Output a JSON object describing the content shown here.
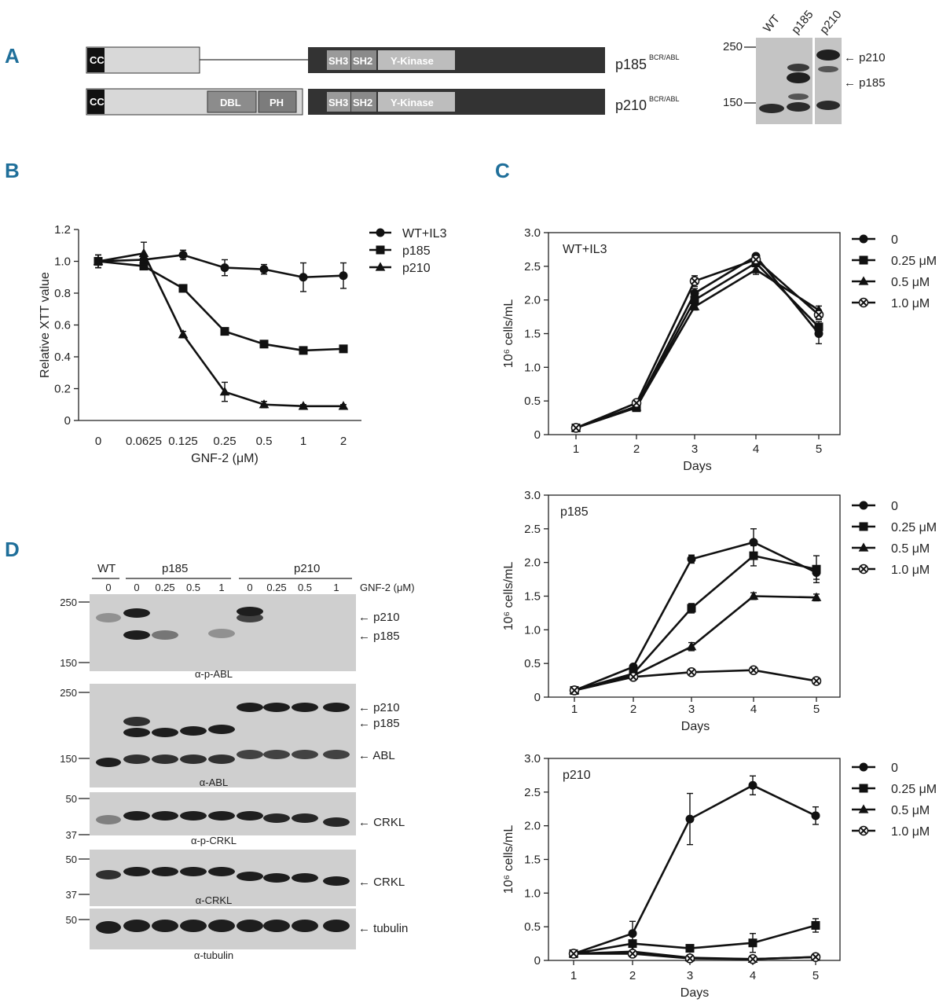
{
  "panel_labels": {
    "a": "A",
    "b": "B",
    "c": "C",
    "d": "D"
  },
  "panel_a": {
    "constructs": [
      {
        "name": "p185",
        "superscript": "BCR/ABL",
        "domains": [
          "CC",
          "SH3",
          "SH2",
          "Y-Kinase"
        ]
      },
      {
        "name": "p210",
        "superscript": "BCR/ABL",
        "domains": [
          "CC",
          "DBL",
          "PH",
          "SH3",
          "SH2",
          "Y-Kinase"
        ]
      }
    ],
    "blot": {
      "lanes": [
        "WT",
        "p185",
        "p210"
      ],
      "markers": [
        "250",
        "150"
      ],
      "arrows": [
        "p210",
        "p185"
      ]
    }
  },
  "chart_data": [
    {
      "id": "B",
      "type": "line",
      "title": "",
      "xlabel": "GNF-2 (μM)",
      "ylabel": "Relative XTT value",
      "categories": [
        "0",
        "0.0625",
        "0.125",
        "0.25",
        "0.5",
        "1",
        "2"
      ],
      "yticks": [
        "0",
        "0.2",
        "0.4",
        "0.6",
        "0.8",
        "1.0",
        "1.2"
      ],
      "ylim": [
        0,
        1.2
      ],
      "series": [
        {
          "name": "WT+IL3",
          "marker": "circle",
          "values": [
            1.0,
            1.01,
            1.04,
            0.96,
            0.95,
            0.9,
            0.91
          ],
          "errors": [
            0.04,
            0.03,
            0.03,
            0.05,
            0.03,
            0.09,
            0.08
          ]
        },
        {
          "name": "p185",
          "marker": "square",
          "values": [
            1.0,
            0.97,
            0.83,
            0.56,
            0.48,
            0.44,
            0.45
          ],
          "errors": [
            0.04,
            0.02,
            0.02,
            0.02,
            0.02,
            0.02,
            0.02
          ]
        },
        {
          "name": "p210",
          "marker": "triangle",
          "values": [
            1.0,
            1.05,
            0.54,
            0.18,
            0.1,
            0.09,
            0.09
          ],
          "errors": [
            0.04,
            0.07,
            0.02,
            0.06,
            0.02,
            0.01,
            0.01
          ]
        }
      ]
    },
    {
      "id": "C1",
      "type": "line",
      "title": "WT+IL3",
      "xlabel": "Days",
      "ylabel": "10⁶ cells/mL",
      "categories": [
        "1",
        "2",
        "3",
        "4",
        "5"
      ],
      "yticks": [
        "0",
        "0.5",
        "1.0",
        "1.5",
        "2.0",
        "2.5",
        "3.0"
      ],
      "ylim": [
        0,
        3.0
      ],
      "series": [
        {
          "name": "0",
          "marker": "circle",
          "values": [
            0.1,
            0.42,
            2.1,
            2.65,
            1.5
          ],
          "errors": [
            0.02,
            0.03,
            0.07,
            0.03,
            0.15
          ]
        },
        {
          "name": "0.25 μM",
          "marker": "square",
          "values": [
            0.1,
            0.4,
            2.0,
            2.55,
            1.6
          ],
          "errors": [
            0.02,
            0.03,
            0.06,
            0.05,
            0.08
          ]
        },
        {
          "name": "0.5 μM",
          "marker": "triangle",
          "values": [
            0.1,
            0.41,
            1.9,
            2.45,
            1.85
          ],
          "errors": [
            0.02,
            0.03,
            0.05,
            0.07,
            0.06
          ]
        },
        {
          "name": "1.0 μM",
          "marker": "x",
          "values": [
            0.1,
            0.47,
            2.28,
            2.6,
            1.78
          ],
          "errors": [
            0.02,
            0.03,
            0.08,
            0.05,
            0.07
          ]
        }
      ]
    },
    {
      "id": "C2",
      "type": "line",
      "title": "p185",
      "xlabel": "Days",
      "ylabel": "10⁶ cells/mL",
      "categories": [
        "1",
        "2",
        "3",
        "4",
        "5"
      ],
      "yticks": [
        "0",
        "0.5",
        "1.0",
        "1.5",
        "2.0",
        "2.5",
        "3.0"
      ],
      "ylim": [
        0,
        3.0
      ],
      "series": [
        {
          "name": "0",
          "marker": "circle",
          "values": [
            0.1,
            0.45,
            2.05,
            2.3,
            1.85
          ],
          "errors": [
            0.02,
            0.03,
            0.06,
            0.2,
            0.1
          ]
        },
        {
          "name": "0.25 μM",
          "marker": "square",
          "values": [
            0.1,
            0.35,
            1.32,
            2.1,
            1.9
          ],
          "errors": [
            0.02,
            0.03,
            0.07,
            0.15,
            0.2
          ]
        },
        {
          "name": "0.5 μM",
          "marker": "triangle",
          "values": [
            0.1,
            0.32,
            0.75,
            1.5,
            1.48
          ],
          "errors": [
            0.02,
            0.02,
            0.06,
            0.05,
            0.05
          ]
        },
        {
          "name": "1.0 μM",
          "marker": "x",
          "values": [
            0.1,
            0.3,
            0.37,
            0.4,
            0.24
          ],
          "errors": [
            0.02,
            0.02,
            0.03,
            0.03,
            0.02
          ]
        }
      ]
    },
    {
      "id": "C3",
      "type": "line",
      "title": "p210",
      "xlabel": "Days",
      "ylabel": "10⁶ cells/mL",
      "categories": [
        "1",
        "2",
        "3",
        "4",
        "5"
      ],
      "yticks": [
        "0",
        "0.5",
        "1.0",
        "1.5",
        "2.0",
        "2.5",
        "3.0"
      ],
      "ylim": [
        0,
        3.0
      ],
      "series": [
        {
          "name": "0",
          "marker": "circle",
          "values": [
            0.1,
            0.4,
            2.1,
            2.6,
            2.15
          ],
          "errors": [
            0.02,
            0.18,
            0.38,
            0.14,
            0.13
          ]
        },
        {
          "name": "0.25 μM",
          "marker": "square",
          "values": [
            0.1,
            0.25,
            0.18,
            0.26,
            0.52
          ],
          "errors": [
            0.02,
            0.04,
            0.03,
            0.14,
            0.1
          ]
        },
        {
          "name": "0.5 μM",
          "marker": "triangle",
          "values": [
            0.1,
            0.13,
            0.04,
            0.02,
            0.05
          ],
          "errors": [
            0.02,
            0.02,
            0.01,
            0.01,
            0.01
          ]
        },
        {
          "name": "1.0 μM",
          "marker": "x",
          "values": [
            0.1,
            0.1,
            0.03,
            0.02,
            0.05
          ],
          "errors": [
            0.02,
            0.02,
            0.01,
            0.01,
            0.01
          ]
        }
      ]
    }
  ],
  "panel_d": {
    "groups": [
      "WT",
      "p185",
      "p210"
    ],
    "lanes": [
      "0",
      "0",
      "0.25",
      "0.5",
      "1",
      "0",
      "0.25",
      "0.5",
      "1"
    ],
    "treatment_label": "GNF-2 (μM)",
    "blots": [
      {
        "antibody": "α-p-ABL",
        "markers": [
          "250",
          "150"
        ],
        "arrows": [
          "p210",
          "p185"
        ]
      },
      {
        "antibody": "α-ABL",
        "markers": [
          "250",
          "150"
        ],
        "arrows": [
          "p210",
          "p185",
          "ABL"
        ]
      },
      {
        "antibody": "α-p-CRKL",
        "markers": [
          "50",
          "37"
        ],
        "arrows": [
          "CRKL"
        ]
      },
      {
        "antibody": "α-CRKL",
        "markers": [
          "50",
          "37"
        ],
        "arrows": [
          "CRKL"
        ]
      },
      {
        "antibody": "α-tubulin",
        "markers": [
          "50"
        ],
        "arrows": [
          "tubulin"
        ]
      }
    ]
  }
}
